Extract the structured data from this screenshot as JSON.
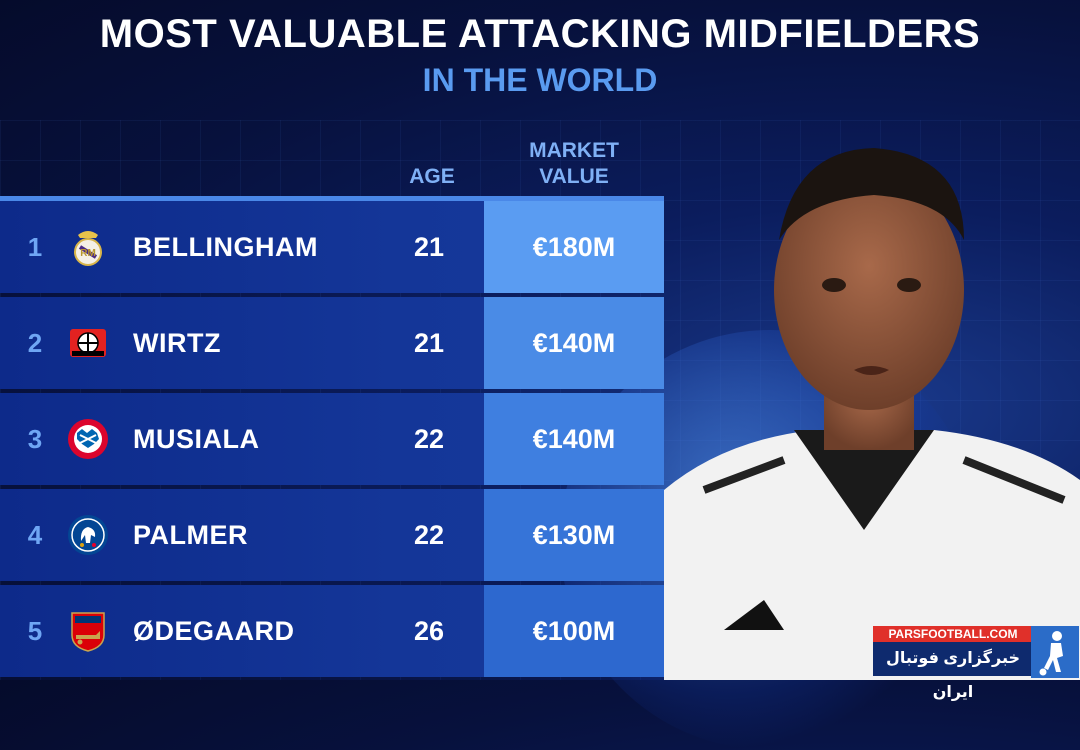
{
  "header": {
    "title": "MOST VALUABLE ATTACKING MIDFIELDERS",
    "subtitle": "IN THE WORLD"
  },
  "columns": {
    "age": "AGE",
    "market_value_line1": "MARKET",
    "market_value_line2": "VALUE"
  },
  "rows": [
    {
      "rank": "1",
      "name": "BELLINGHAM",
      "age": "21",
      "value": "€180M",
      "crest": "real-madrid-crest-icon",
      "value_bg": "#5a9cf2"
    },
    {
      "rank": "2",
      "name": "WIRTZ",
      "age": "21",
      "value": "€140M",
      "crest": "bayer-leverkusen-crest-icon",
      "value_bg": "#4a8be6"
    },
    {
      "rank": "3",
      "name": "MUSIALA",
      "age": "22",
      "value": "€140M",
      "crest": "bayern-munich-crest-icon",
      "value_bg": "#3f7fe0"
    },
    {
      "rank": "4",
      "name": "PALMER",
      "age": "22",
      "value": "€130M",
      "crest": "chelsea-crest-icon",
      "value_bg": "#3674d8"
    },
    {
      "rank": "5",
      "name": "ØDEGAARD",
      "age": "26",
      "value": "€100M",
      "crest": "arsenal-crest-icon",
      "value_bg": "#2d68cf"
    }
  ],
  "watermark": {
    "top": "PARSFOOTBALL.COM",
    "bottom": "خبرگزاری فوتبال ایران"
  },
  "colors": {
    "accent": "#5a9bf0",
    "background": "#0b1d5e",
    "watermark_red": "#e0302a"
  }
}
